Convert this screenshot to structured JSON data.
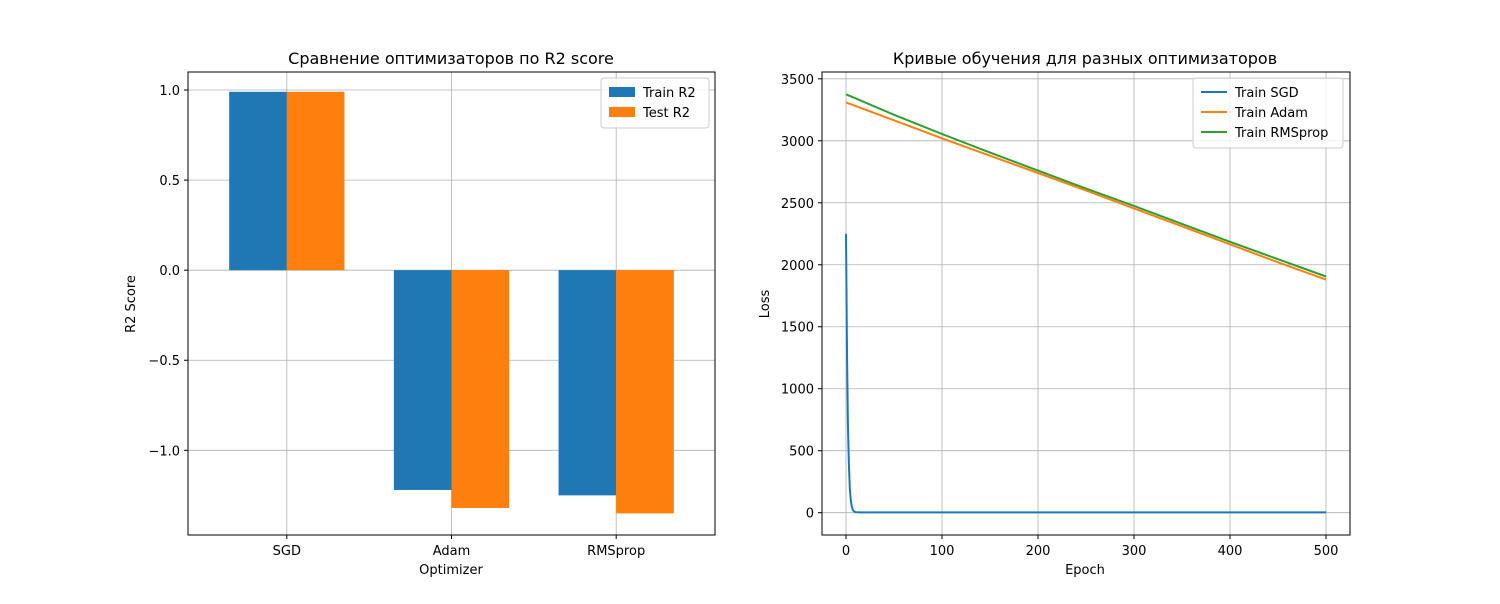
{
  "figure": {
    "background": "#ffffff",
    "grid_color": "#b0b0b0"
  },
  "chart_data": [
    {
      "type": "bar",
      "title": "Сравнение оптимизаторов по R2 score",
      "xlabel": "Optimizer",
      "ylabel": "R2 Score",
      "categories": [
        "SGD",
        "Adam",
        "RMSprop"
      ],
      "series": [
        {
          "name": "Train R2",
          "color": "#1f77b4",
          "values": [
            0.99,
            -1.22,
            -1.25
          ]
        },
        {
          "name": "Test R2",
          "color": "#ff7f0e",
          "values": [
            0.99,
            -1.32,
            -1.35
          ]
        }
      ],
      "ylim": [
        -1.47,
        1.1
      ],
      "yticks": [
        1.0,
        0.5,
        0.0,
        -0.5,
        -1.0
      ],
      "ytick_labels": [
        "1.0",
        "0.5",
        "0.0",
        "−0.5",
        "−1.0"
      ],
      "grid": true,
      "legend_position": "top-right"
    },
    {
      "type": "line",
      "title": "Кривые обучения для разных оптимизаторов",
      "xlabel": "Epoch",
      "ylabel": "Loss",
      "xlim": [
        -25,
        525
      ],
      "ylim": [
        -180,
        3555
      ],
      "xticks": [
        0,
        100,
        200,
        300,
        400,
        500
      ],
      "xtick_labels": [
        "0",
        "100",
        "200",
        "300",
        "400",
        "500"
      ],
      "yticks": [
        0,
        500,
        1000,
        1500,
        2000,
        2500,
        3000,
        3500
      ],
      "ytick_labels": [
        "0",
        "500",
        "1000",
        "1500",
        "2000",
        "2500",
        "3000",
        "3500"
      ],
      "grid": true,
      "legend_position": "top-right",
      "series": [
        {
          "name": "Train SGD",
          "color": "#1f77b4",
          "x": [
            0,
            1,
            2,
            3,
            4,
            5,
            6,
            7,
            8,
            10,
            12,
            15,
            20,
            50,
            100,
            200,
            300,
            400,
            500
          ],
          "y": [
            2250,
            1300,
            720,
            390,
            200,
            100,
            50,
            25,
            12,
            5,
            3,
            2,
            2,
            2,
            2,
            2,
            2,
            2,
            2
          ]
        },
        {
          "name": "Train Adam",
          "color": "#ff7f0e",
          "x": [
            0,
            50,
            100,
            150,
            200,
            250,
            300,
            350,
            400,
            450,
            500
          ],
          "y": [
            3310,
            3165,
            3020,
            2880,
            2740,
            2600,
            2455,
            2310,
            2165,
            2020,
            1880
          ]
        },
        {
          "name": "Train RMSprop",
          "color": "#2ca02c",
          "x": [
            0,
            50,
            100,
            150,
            200,
            250,
            300,
            350,
            400,
            450,
            500
          ],
          "y": [
            3375,
            3210,
            3055,
            2905,
            2760,
            2615,
            2475,
            2330,
            2185,
            2045,
            1905
          ]
        }
      ]
    }
  ]
}
